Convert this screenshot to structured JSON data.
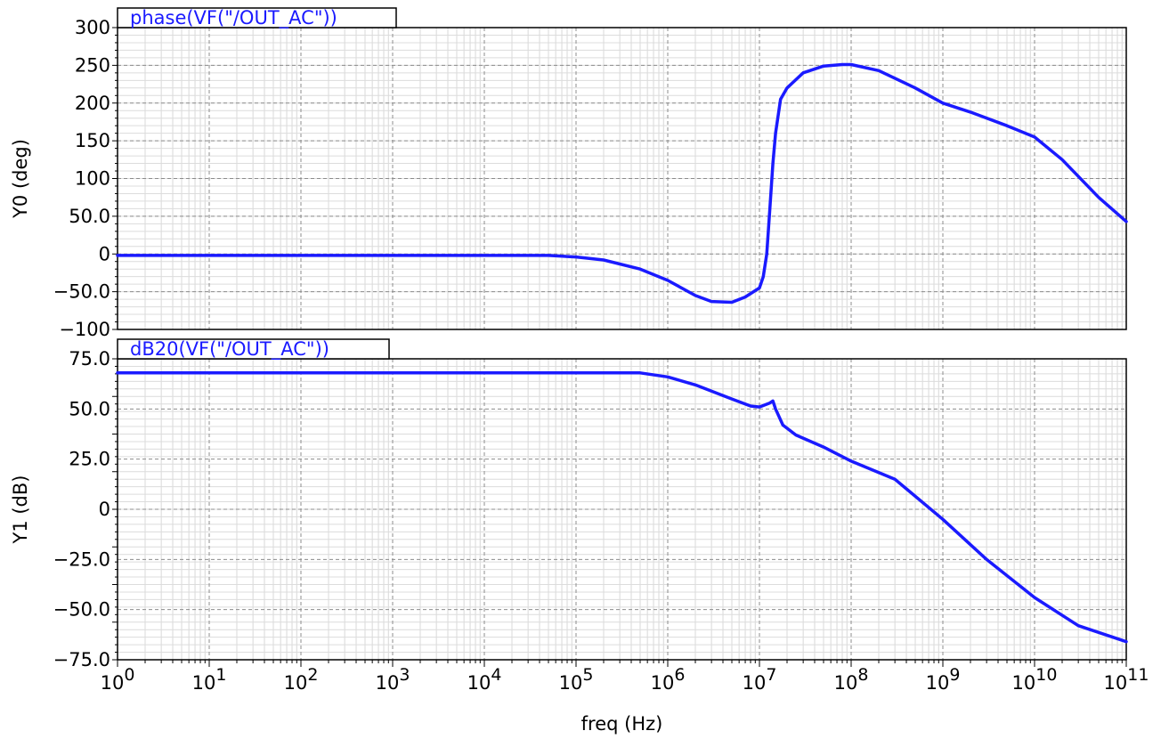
{
  "chart_data": {
    "type": "line",
    "xlabel": "freq (Hz)",
    "x_scale": "log",
    "xlim": [
      1,
      100000000000
    ],
    "x_ticks": [
      {
        "value": 1,
        "base": "10",
        "exp": "0"
      },
      {
        "value": 10,
        "base": "10",
        "exp": "1"
      },
      {
        "value": 100,
        "base": "10",
        "exp": "2"
      },
      {
        "value": 1000,
        "base": "10",
        "exp": "3"
      },
      {
        "value": 10000,
        "base": "10",
        "exp": "4"
      },
      {
        "value": 100000,
        "base": "10",
        "exp": "5"
      },
      {
        "value": 1000000,
        "base": "10",
        "exp": "6"
      },
      {
        "value": 10000000,
        "base": "10",
        "exp": "7"
      },
      {
        "value": 100000000,
        "base": "10",
        "exp": "8"
      },
      {
        "value": 1000000000,
        "base": "10",
        "exp": "9"
      },
      {
        "value": 10000000000,
        "base": "10",
        "exp": "10"
      },
      {
        "value": 100000000000,
        "base": "10",
        "exp": "11"
      }
    ],
    "grid": true,
    "series_color": "#1a1aff",
    "panels": [
      {
        "trace_label": "phase(VF(\"/OUT_AC\"))",
        "ylabel": "Y0 (deg)",
        "ylim": [
          -100,
          300
        ],
        "y_ticks": [
          {
            "value": 300,
            "label": "300"
          },
          {
            "value": 250,
            "label": "250"
          },
          {
            "value": 200,
            "label": "200"
          },
          {
            "value": 150,
            "label": "150"
          },
          {
            "value": 100,
            "label": "100"
          },
          {
            "value": 50,
            "label": "50.0"
          },
          {
            "value": 0,
            "label": "0"
          },
          {
            "value": -50,
            "label": "-50.0"
          },
          {
            "value": -100,
            "label": "-100"
          }
        ],
        "points": [
          [
            1,
            -2
          ],
          [
            10,
            -2
          ],
          [
            100,
            -2
          ],
          [
            1000,
            -2
          ],
          [
            10000,
            -2
          ],
          [
            50000,
            -2
          ],
          [
            100000,
            -4
          ],
          [
            200000,
            -8
          ],
          [
            500000,
            -20
          ],
          [
            1000000,
            -35
          ],
          [
            2000000,
            -55
          ],
          [
            3000000,
            -63
          ],
          [
            5000000,
            -64
          ],
          [
            7000000,
            -57
          ],
          [
            10000000,
            -45
          ],
          [
            11000000,
            -30
          ],
          [
            12000000,
            0
          ],
          [
            13000000,
            60
          ],
          [
            14000000,
            120
          ],
          [
            15000000,
            160
          ],
          [
            17000000,
            205
          ],
          [
            20000000,
            220
          ],
          [
            30000000,
            240
          ],
          [
            50000000,
            249
          ],
          [
            80000000,
            251
          ],
          [
            100000000,
            251
          ],
          [
            200000000,
            243
          ],
          [
            500000000,
            220
          ],
          [
            1000000000,
            200
          ],
          [
            2000000000,
            188
          ],
          [
            5000000000,
            170
          ],
          [
            10000000000,
            155
          ],
          [
            20000000000,
            125
          ],
          [
            50000000000,
            75
          ],
          [
            100000000000,
            43
          ]
        ]
      },
      {
        "trace_label": "dB20(VF(\"/OUT_AC\"))",
        "ylabel": "Y1 (dB)",
        "ylim": [
          -75,
          75
        ],
        "y_ticks": [
          {
            "value": 75,
            "label": "75.0"
          },
          {
            "value": 50,
            "label": "50.0"
          },
          {
            "value": 25,
            "label": "25.0"
          },
          {
            "value": 0,
            "label": "0"
          },
          {
            "value": -25,
            "label": "-25.0"
          },
          {
            "value": -50,
            "label": "-50.0"
          },
          {
            "value": -75,
            "label": "-75.0"
          }
        ],
        "points": [
          [
            1,
            68
          ],
          [
            10,
            68
          ],
          [
            100,
            68
          ],
          [
            1000,
            68
          ],
          [
            10000,
            68
          ],
          [
            100000,
            68
          ],
          [
            500000,
            68
          ],
          [
            1000000,
            66
          ],
          [
            2000000,
            62
          ],
          [
            5000000,
            55
          ],
          [
            8000000,
            51.5
          ],
          [
            10000000,
            51
          ],
          [
            13000000,
            53
          ],
          [
            14000000,
            54
          ],
          [
            15000000,
            50
          ],
          [
            18000000,
            42
          ],
          [
            25000000,
            37
          ],
          [
            50000000,
            31
          ],
          [
            100000000,
            24
          ],
          [
            300000000,
            15
          ],
          [
            1000000000,
            -5
          ],
          [
            3000000000,
            -25
          ],
          [
            10000000000,
            -44
          ],
          [
            30000000000,
            -58
          ],
          [
            100000000000,
            -66
          ]
        ]
      }
    ]
  }
}
